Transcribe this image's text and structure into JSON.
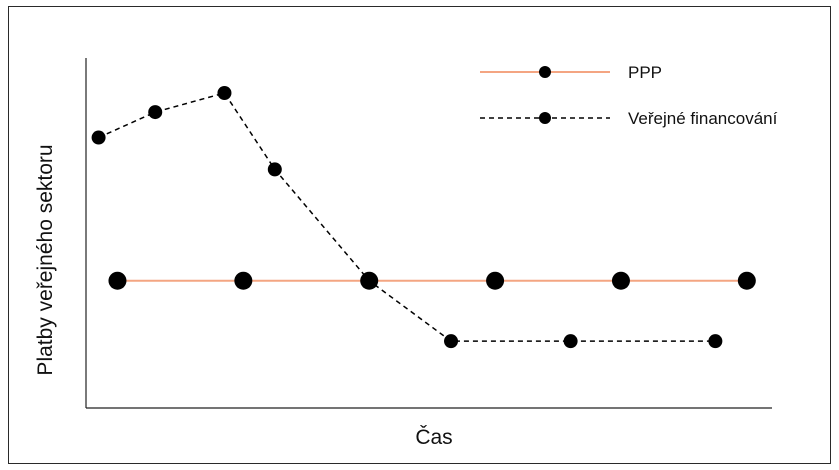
{
  "chart_data": {
    "type": "line",
    "title": "",
    "xlabel": "Čas",
    "ylabel": "Platby veřejného sektoru",
    "x_ticks_visible": false,
    "y_ticks_visible": false,
    "legend_position": "top-right",
    "grid": false,
    "series": [
      {
        "name": "PPP",
        "color": "#f4a582",
        "line_style": "solid",
        "marker": "circle",
        "x": [
          1,
          2,
          3,
          4,
          5,
          6
        ],
        "y": [
          0.4,
          0.4,
          0.4,
          0.4,
          0.4,
          0.4
        ]
      },
      {
        "name": "Veřejné financování",
        "color": "#000000",
        "line_style": "dashed",
        "marker": "circle",
        "x": [
          0.85,
          1.3,
          1.85,
          2.25,
          3.0,
          3.65,
          4.6,
          5.75
        ],
        "y": [
          0.85,
          0.93,
          0.99,
          0.75,
          0.4,
          0.21,
          0.21,
          0.21
        ]
      }
    ],
    "xlim": [
      0.75,
      6.2
    ],
    "ylim": [
      0,
      1.1
    ]
  }
}
